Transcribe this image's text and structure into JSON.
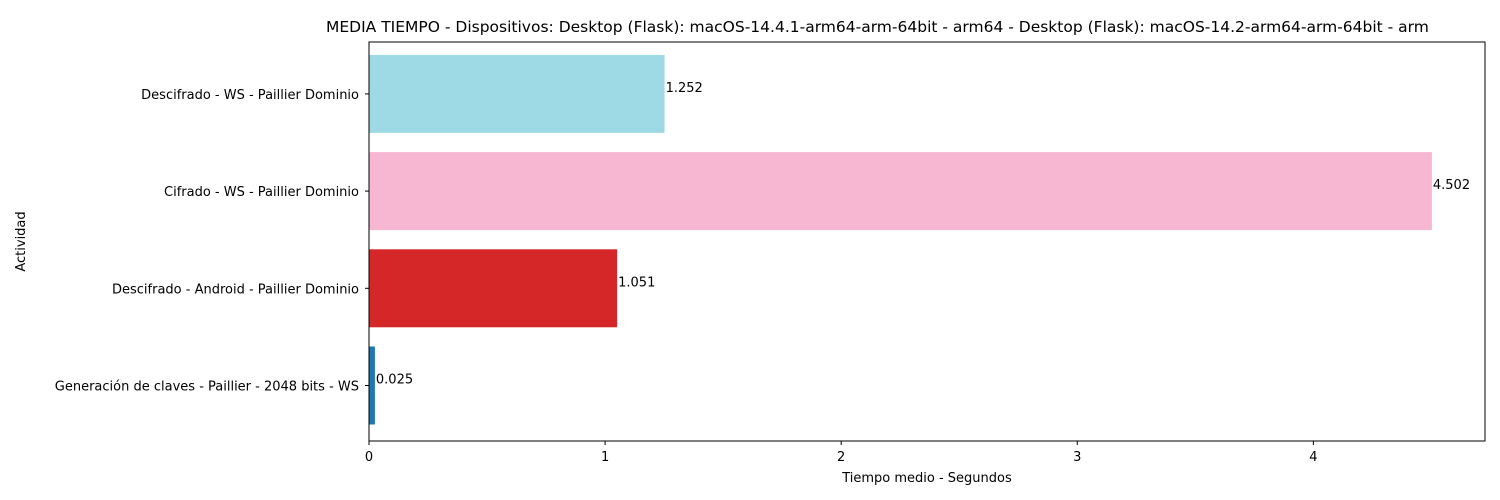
{
  "chart_data": {
    "type": "bar",
    "orientation": "horizontal",
    "title": "MEDIA TIEMPO - Dispositivos: Desktop (Flask): macOS-14.4.1-arm64-arm-64bit - arm64 - Desktop (Flask): macOS-14.2-arm64-arm-64bit - arm",
    "xlabel": "Tiempo medio - Segundos",
    "ylabel": "Actividad",
    "xlim": [
      0,
      4.727
    ],
    "xticks": [
      "0",
      "1",
      "2",
      "3",
      "4"
    ],
    "grid": false,
    "categories": [
      "Generación de claves - Paillier - 2048 bits - WS",
      "Descifrado - Android - Paillier Dominio",
      "Cifrado - WS - Paillier Dominio",
      "Descifrado - WS - Paillier Dominio"
    ],
    "values": [
      0.025,
      1.051,
      4.502,
      1.252
    ],
    "value_labels": [
      "0.025",
      "1.051",
      "4.502",
      "1.252"
    ],
    "colors": [
      "#1f77b4",
      "#d62728",
      "#f7b6d2",
      "#9edae5"
    ]
  }
}
